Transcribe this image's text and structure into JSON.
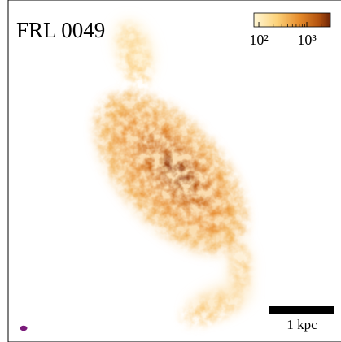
{
  "panel": {
    "label": "FRL 0049",
    "scalebar": "1 kpc"
  },
  "colorbar": {
    "log": true,
    "lim": [
      79,
      3100
    ],
    "ticks": [
      {
        "value": 100,
        "label": "10²"
      },
      {
        "value": 1000,
        "label": "10³"
      }
    ],
    "minor_ticks": [
      200,
      300,
      400,
      500,
      600,
      700,
      800,
      900,
      2000,
      3000
    ]
  }
}
